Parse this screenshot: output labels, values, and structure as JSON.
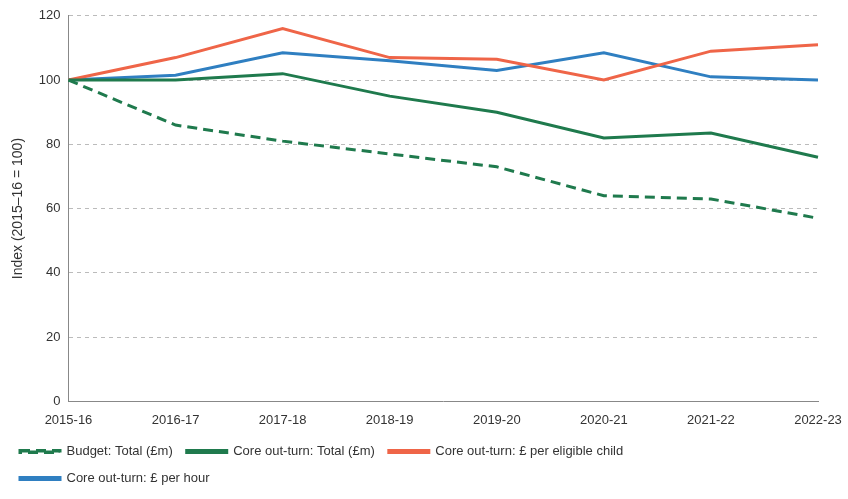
{
  "chart_data": {
    "type": "line",
    "y_label": "Index (2015–16 = 100)",
    "categories": [
      "2015-16",
      "2016-17",
      "2017-18",
      "2018-19",
      "2019-20",
      "2020-21",
      "2021-22",
      "2022-23"
    ],
    "series": [
      {
        "name": "Budget: Total (£m)",
        "color": "#1f7a4d",
        "line_style": "dashed",
        "values": [
          100,
          86,
          81,
          77,
          73,
          64,
          63,
          57
        ]
      },
      {
        "name": "Core out-turn: Total (£m)",
        "color": "#1f7a4d",
        "line_style": "solid",
        "values": [
          100,
          100,
          102,
          95,
          90,
          82,
          83.5,
          76
        ]
      },
      {
        "name": "Core out-turn: £ per eligible child",
        "color": "#ef6548",
        "line_style": "solid",
        "values": [
          100,
          107,
          116,
          107,
          106.5,
          100,
          109,
          111
        ]
      },
      {
        "name": "Core out-turn: £ per hour",
        "color": "#2f7fc1",
        "line_style": "solid",
        "values": [
          100,
          101.5,
          108.5,
          106,
          103,
          108.5,
          101,
          100
        ]
      }
    ],
    "ylim": [
      0,
      120
    ],
    "yticks": [
      0,
      20,
      40,
      60,
      80,
      100,
      120
    ],
    "grid": true,
    "legend": "bottom"
  }
}
